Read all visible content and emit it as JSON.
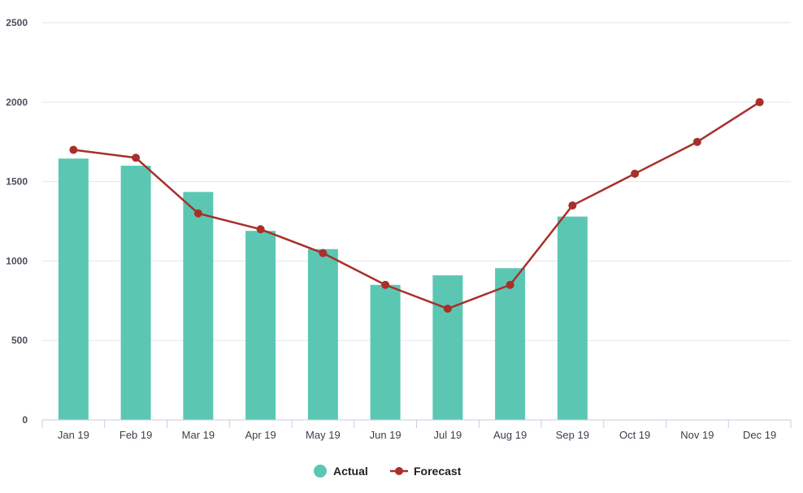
{
  "chart_data": {
    "type": "bar",
    "categories": [
      "Jan 19",
      "Feb 19",
      "Mar 19",
      "Apr 19",
      "May 19",
      "Jun 19",
      "Jul 19",
      "Aug 19",
      "Sep 19",
      "Oct 19",
      "Nov 19",
      "Dec 19"
    ],
    "series": [
      {
        "name": "Actual",
        "type": "bar",
        "color": "#5bc7b3",
        "values": [
          1645,
          1600,
          1435,
          1190,
          1075,
          850,
          910,
          955,
          1280,
          null,
          null,
          null
        ]
      },
      {
        "name": "Forecast",
        "type": "line",
        "color": "#a8302a",
        "values": [
          1700,
          1650,
          1300,
          1200,
          1050,
          850,
          700,
          850,
          1350,
          1550,
          1750,
          2000
        ]
      }
    ],
    "y_ticks": [
      "0",
      "500",
      "1000",
      "1500",
      "2000",
      "2500"
    ],
    "ylim": [
      0,
      2500
    ],
    "grid": true,
    "legend_position": "bottom-center",
    "title": "",
    "xlabel": "",
    "ylabel": ""
  }
}
